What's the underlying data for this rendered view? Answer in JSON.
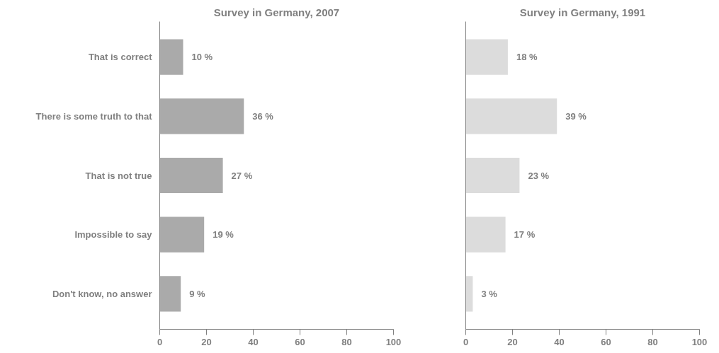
{
  "chart_data": [
    {
      "type": "bar",
      "orientation": "horizontal",
      "title": "Survey in Germany, 2007",
      "categories": [
        "That is correct",
        "There is some truth to that",
        "That is not true",
        "Impossible to say",
        "Don't know, no answer"
      ],
      "values": [
        10,
        36,
        27,
        19,
        9
      ],
      "value_labels": [
        "10 %",
        "36 %",
        "27 %",
        "19 %",
        "9 %"
      ],
      "color": "#aaaaaa",
      "xlim": [
        0,
        100
      ],
      "xticks": [
        0,
        20,
        40,
        60,
        80,
        100
      ],
      "grid": false
    },
    {
      "type": "bar",
      "orientation": "horizontal",
      "title": "Survey in Germany, 1991",
      "categories": [
        null,
        null,
        null,
        null,
        null
      ],
      "values": [
        18,
        39,
        23,
        17,
        3
      ],
      "value_labels": [
        "18 %",
        "39 %",
        "23 %",
        "17 %",
        "3 %"
      ],
      "color": "#dcdcdc",
      "xlim": [
        0,
        100
      ],
      "xticks": [
        0,
        20,
        40,
        60,
        80,
        100
      ],
      "grid": false,
      "tick_labels": "x"
    }
  ]
}
